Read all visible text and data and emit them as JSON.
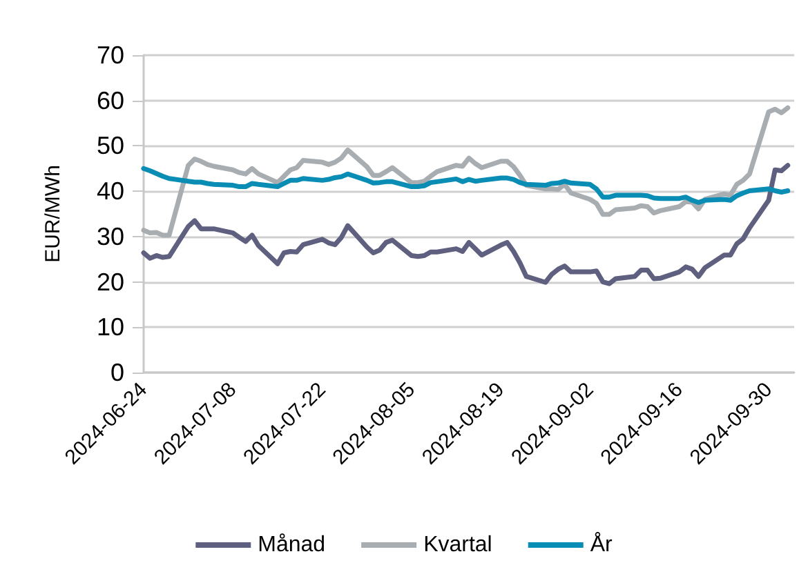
{
  "chart_data": {
    "type": "line",
    "ylabel": "EUR/MWh",
    "x": [
      "2024-06-24",
      "2024-06-25",
      "2024-06-26",
      "2024-06-27",
      "2024-06-28",
      "2024-07-01",
      "2024-07-02",
      "2024-07-03",
      "2024-07-04",
      "2024-07-05",
      "2024-07-08",
      "2024-07-09",
      "2024-07-10",
      "2024-07-11",
      "2024-07-12",
      "2024-07-15",
      "2024-07-16",
      "2024-07-17",
      "2024-07-18",
      "2024-07-19",
      "2024-07-22",
      "2024-07-23",
      "2024-07-24",
      "2024-07-25",
      "2024-07-26",
      "2024-07-29",
      "2024-07-30",
      "2024-07-31",
      "2024-08-01",
      "2024-08-02",
      "2024-08-05",
      "2024-08-06",
      "2024-08-07",
      "2024-08-08",
      "2024-08-09",
      "2024-08-12",
      "2024-08-13",
      "2024-08-14",
      "2024-08-15",
      "2024-08-16",
      "2024-08-19",
      "2024-08-20",
      "2024-08-21",
      "2024-08-22",
      "2024-08-23",
      "2024-08-26",
      "2024-08-27",
      "2024-08-28",
      "2024-08-29",
      "2024-08-30",
      "2024-09-02",
      "2024-09-03",
      "2024-09-04",
      "2024-09-05",
      "2024-09-06",
      "2024-09-09",
      "2024-09-10",
      "2024-09-11",
      "2024-09-12",
      "2024-09-13",
      "2024-09-16",
      "2024-09-17",
      "2024-09-18",
      "2024-09-19",
      "2024-09-20",
      "2024-09-23",
      "2024-09-24",
      "2024-09-25",
      "2024-09-26",
      "2024-09-27",
      "2024-09-30",
      "2024-10-01",
      "2024-10-02",
      "2024-10-03"
    ],
    "series": [
      {
        "name": "Månad",
        "color": "#5f5f80",
        "values": [
          26.4,
          25.2,
          25.8,
          25.4,
          25.6,
          32.2,
          33.5,
          31.7,
          31.7,
          31.7,
          30.8,
          29.8,
          28.9,
          30.3,
          28,
          24,
          26.4,
          26.7,
          26.6,
          28.2,
          29.4,
          28.6,
          28.2,
          29.8,
          32.4,
          27.7,
          26.4,
          27,
          28.7,
          29.2,
          25.8,
          25.6,
          25.8,
          26.6,
          26.6,
          27.3,
          26.7,
          28.7,
          27.3,
          25.9,
          28.1,
          28.7,
          26.7,
          24.2,
          21.2,
          19.9,
          21.7,
          22.8,
          23.5,
          22.2,
          22.2,
          22.4,
          20,
          19.6,
          20.7,
          21.2,
          22.6,
          22.6,
          20.7,
          20.8,
          22.2,
          23.3,
          22.8,
          21.2,
          23.1,
          25.9,
          25.9,
          28.4,
          29.5,
          31.9,
          38,
          44.7,
          44.5,
          45.7
        ]
      },
      {
        "name": "Kvartal",
        "color": "#a8adb1",
        "values": [
          31.4,
          30.8,
          30.9,
          30.3,
          30.3,
          45.7,
          47.1,
          46.6,
          45.9,
          45.5,
          44.7,
          44.1,
          43.8,
          45,
          43.8,
          41.9,
          43.3,
          44.7,
          45.2,
          46.8,
          46.4,
          45.9,
          46.4,
          47.3,
          49.1,
          45.4,
          43.5,
          43.5,
          44.3,
          45.2,
          41.9,
          41.9,
          42.2,
          43.3,
          44.3,
          45.7,
          45.5,
          47.3,
          46.1,
          45.2,
          46.6,
          46.6,
          45.4,
          43.5,
          41.3,
          40.5,
          40.5,
          40.4,
          41.5,
          39.6,
          38.2,
          37.3,
          34.9,
          34.9,
          35.9,
          36.3,
          36.8,
          36.6,
          35.2,
          35.7,
          36.6,
          37.7,
          37.6,
          36.1,
          38.2,
          39.4,
          39.1,
          41.5,
          42.4,
          43.8,
          57.5,
          58.1,
          57.3,
          58.4
        ]
      },
      {
        "name": "År",
        "color": "#0a8db4",
        "values": [
          45,
          44.5,
          43.9,
          43.3,
          42.8,
          42.2,
          42,
          42,
          41.7,
          41.5,
          41.3,
          41,
          41,
          41.7,
          41.5,
          41,
          41.7,
          42.4,
          42.4,
          42.8,
          42.4,
          42.6,
          43,
          43.2,
          43.8,
          42.4,
          41.8,
          41.9,
          42.1,
          42.1,
          41,
          41,
          41.2,
          41.9,
          42.1,
          42.7,
          42.1,
          42.6,
          42.2,
          42.4,
          42.9,
          42.9,
          42.6,
          41.9,
          41.5,
          41.3,
          41.7,
          41.8,
          42.2,
          41.8,
          41.5,
          40.5,
          38.7,
          38.7,
          39.1,
          39.1,
          39.1,
          39,
          38.5,
          38.4,
          38.4,
          38.7,
          38,
          37.5,
          38,
          38.2,
          38,
          39,
          39.6,
          40.1,
          40.5,
          40.1,
          39.8,
          40.1
        ]
      }
    ],
    "xlim": [
      "2024-06-24",
      "2024-10-04"
    ],
    "xticks": [
      "2024-06-24",
      "2024-07-08",
      "2024-07-22",
      "2024-08-05",
      "2024-08-19",
      "2024-09-02",
      "2024-09-16",
      "2024-09-30"
    ],
    "ylim": [
      0,
      70
    ],
    "yticks": [
      0,
      10,
      20,
      30,
      40,
      50,
      60,
      70
    ],
    "grid": "y",
    "legend": "bottom",
    "marker": "none",
    "line_style": "solid"
  }
}
